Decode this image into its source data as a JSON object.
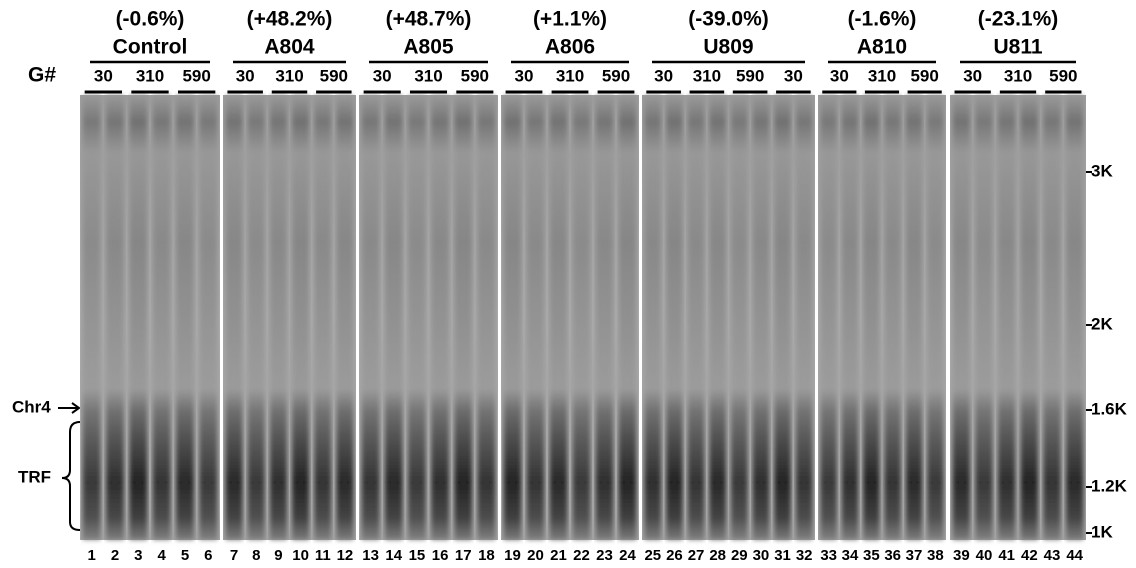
{
  "header": {
    "row_label": "G#"
  },
  "groups": [
    {
      "change": "(-0.6%)",
      "name": "Control",
      "doses": [
        30,
        310,
        590
      ]
    },
    {
      "change": "(+48.2%)",
      "name": "A804",
      "doses": [
        30,
        310,
        590
      ]
    },
    {
      "change": "(+48.7%)",
      "name": "A805",
      "doses": [
        30,
        310,
        590
      ]
    },
    {
      "change": "(+1.1%)",
      "name": "A806",
      "doses": [
        30,
        310,
        590
      ]
    },
    {
      "change": "(-39.0%)",
      "name": "U809",
      "doses": [
        30,
        310,
        590,
        30
      ]
    },
    {
      "change": "(-1.6%)",
      "name": "A810",
      "doses": [
        30,
        310,
        590
      ]
    },
    {
      "change": "(-23.1%)",
      "name": "U811",
      "doses": [
        30,
        310,
        590
      ]
    }
  ],
  "lanes": [
    1,
    2,
    3,
    4,
    5,
    6,
    7,
    8,
    9,
    10,
    11,
    12,
    13,
    14,
    15,
    16,
    17,
    18,
    19,
    20,
    21,
    22,
    23,
    24,
    25,
    26,
    27,
    28,
    29,
    30,
    31,
    32,
    33,
    34,
    35,
    36,
    37,
    38,
    39,
    40,
    41,
    42,
    43,
    44
  ],
  "markers": [
    "3K",
    "2K",
    "1.6K",
    "1.2K",
    "1K"
  ],
  "left_labels": {
    "chr4": "Chr4",
    "trf": "TRF"
  }
}
